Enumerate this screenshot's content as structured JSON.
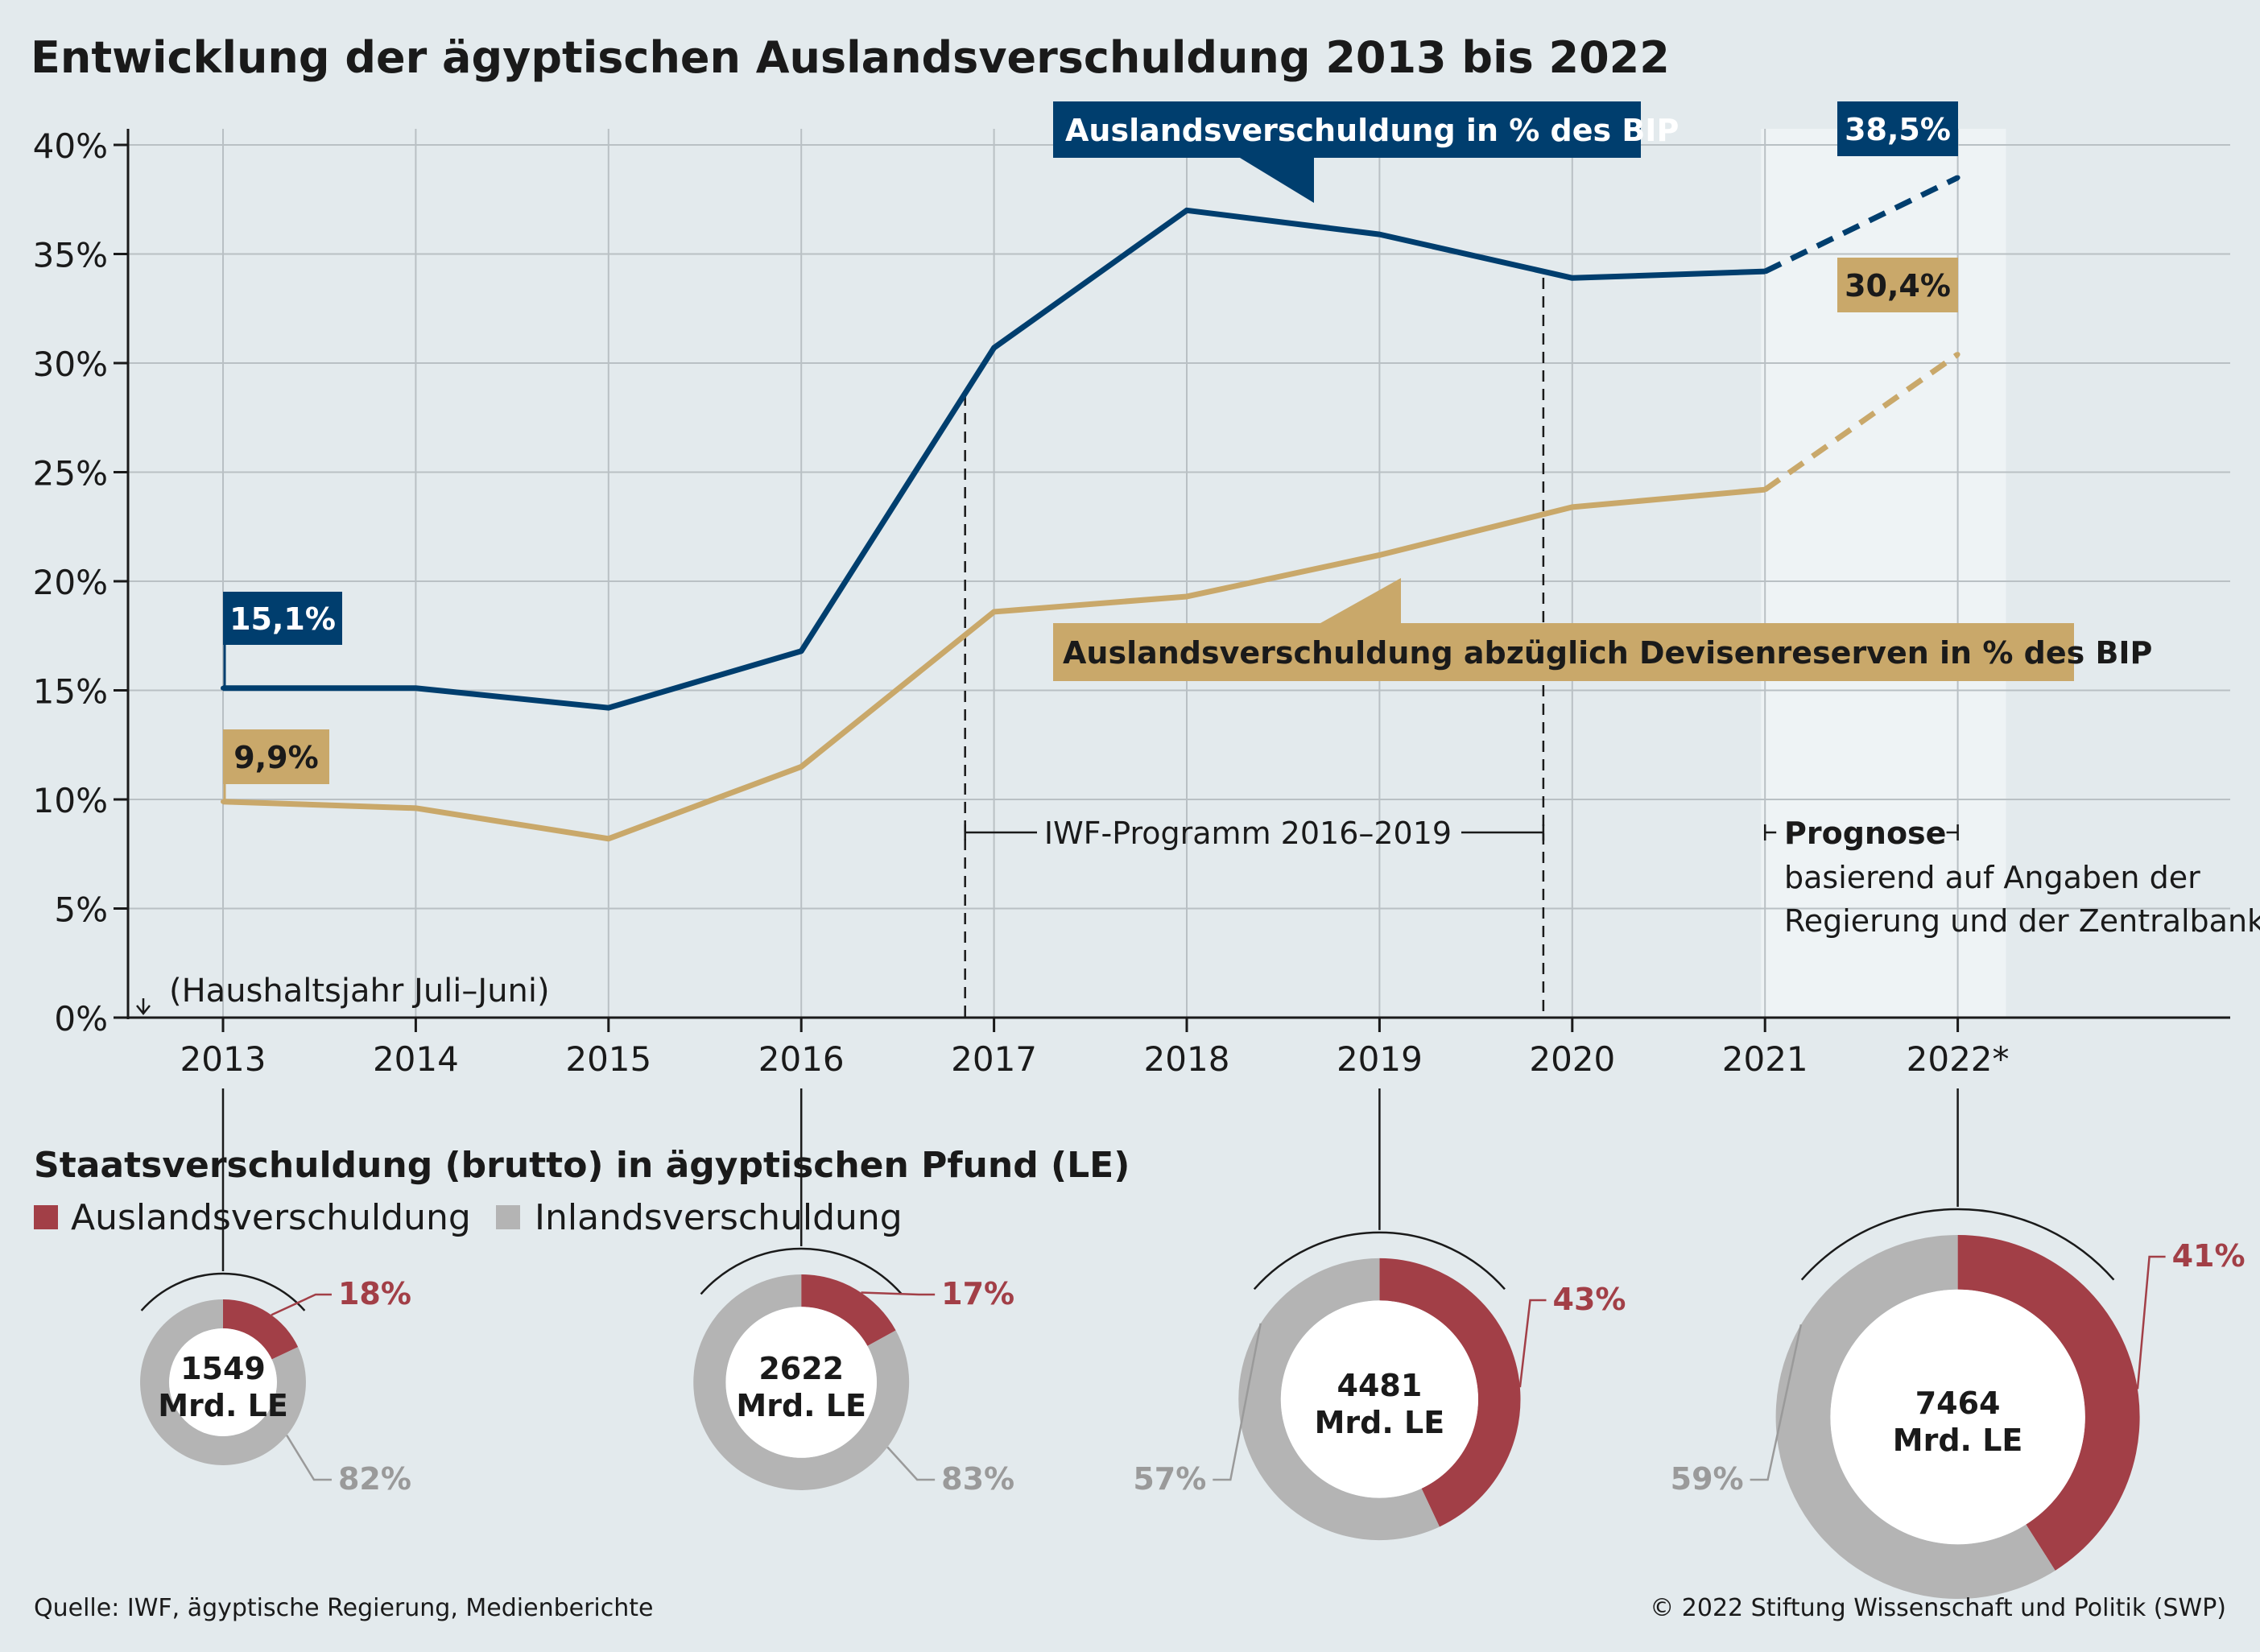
{
  "title": "Entwicklung der ägyptischen Auslandsverschuldung 2013 bis 2022",
  "colors": {
    "background": "#e3eaed",
    "forecast_shade": "#eef3f5",
    "blue": "#003e6e",
    "gold": "#c9a86a",
    "grid": "#b9c0c4",
    "red": "#a23f47",
    "gray": "#b4b4b4",
    "axis": "#1a1a1a"
  },
  "chart_data": [
    {
      "type": "line",
      "categories": [
        "2013",
        "2014",
        "2015",
        "2016",
        "2017",
        "2018",
        "2019",
        "2020",
        "2021",
        "2022*"
      ],
      "y_ticks": [
        "0%",
        "5%",
        "10%",
        "15%",
        "20%",
        "25%",
        "30%",
        "35%",
        "40%"
      ],
      "ylim": [
        0,
        40
      ],
      "grid": true,
      "series": [
        {
          "name": "Auslandsverschuldung in % des BIP",
          "color": "#003e6e",
          "values": [
            15.1,
            15.1,
            14.2,
            16.8,
            30.7,
            37.0,
            35.9,
            33.9,
            34.2,
            38.5
          ],
          "forecast_from_index": 8
        },
        {
          "name": "Auslandsverschuldung abzüglich Devisenreserven in % des BIP",
          "color": "#c9a86a",
          "values": [
            9.9,
            9.6,
            8.2,
            11.5,
            18.6,
            19.3,
            21.2,
            23.4,
            24.2,
            30.4
          ],
          "forecast_from_index": 8
        }
      ],
      "value_labels": [
        {
          "series": 0,
          "index": 0,
          "text": "15,1%"
        },
        {
          "series": 0,
          "index": 9,
          "text": "38,5%"
        },
        {
          "series": 1,
          "index": 0,
          "text": "9,9%"
        },
        {
          "series": 1,
          "index": 9,
          "text": "30,4%"
        }
      ],
      "annotations": {
        "axis_note": "(Haushaltsjahr Juli–Juni)",
        "imf_program": "IWF-Programm 2016–2019",
        "imf_range": [
          2016.85,
          2019.85
        ],
        "forecast_title": "Prognose",
        "forecast_note_1": "basierend auf Angaben der",
        "forecast_note_2": "Regierung und der Zentralbank",
        "forecast_range": [
          2020.98,
          2022.25
        ]
      }
    },
    {
      "type": "pie",
      "title": "Staatsverschuldung (brutto) in ägyptischen Pfund (LE)",
      "legend": [
        {
          "label": "Auslandsverschuldung",
          "color": "#a23f47"
        },
        {
          "label": "Inlandsverschuldung",
          "color": "#b4b4b4"
        }
      ],
      "items": [
        {
          "year": "2013",
          "total": 1549,
          "total_label": "1549",
          "unit_label": "Mrd. LE",
          "foreign_pct": 18,
          "domestic_pct": 82,
          "foreign_label": "18%",
          "domestic_label": "82%"
        },
        {
          "year": "2016",
          "total": 2622,
          "total_label": "2622",
          "unit_label": "Mrd. LE",
          "foreign_pct": 17,
          "domestic_pct": 83,
          "foreign_label": "17%",
          "domestic_label": "83%"
        },
        {
          "year": "2019",
          "total": 4481,
          "total_label": "4481",
          "unit_label": "Mrd. LE",
          "foreign_pct": 43,
          "domestic_pct": 57,
          "foreign_label": "43%",
          "domestic_label": "57%"
        },
        {
          "year": "2022*",
          "total": 7464,
          "total_label": "7464",
          "unit_label": "Mrd. LE",
          "foreign_pct": 41,
          "domestic_pct": 59,
          "foreign_label": "41%",
          "domestic_label": "59%"
        }
      ]
    }
  ],
  "footer": {
    "source": "Quelle: IWF, ägyptische Regierung, Medienberichte",
    "copyright": "© 2022 Stiftung Wissenschaft und Politik (SWP)"
  }
}
